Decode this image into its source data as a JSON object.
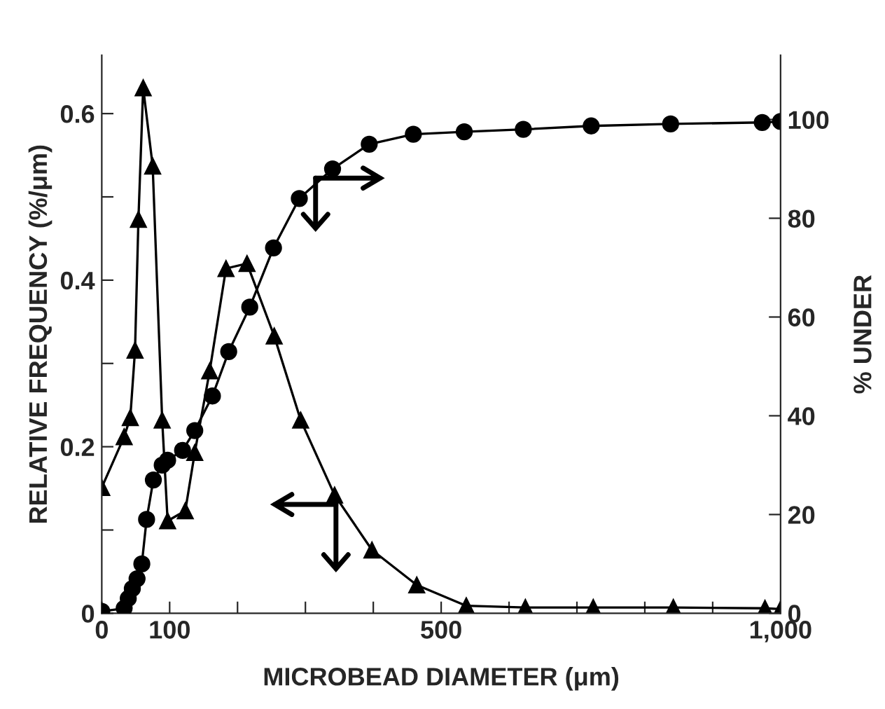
{
  "chart_data": {
    "type": "line",
    "xlabel": "MICROBEAD DIAMETER (μm)",
    "ylabel": "RELATIVE FREQUENCY (%/μm)",
    "y2label": "% UNDER",
    "xlim": [
      0,
      1000
    ],
    "xticks": [
      0,
      100,
      {
        "value": 200,
        "label": null
      },
      {
        "value": 300,
        "label": null
      },
      {
        "value": 400,
        "label": null
      },
      500,
      {
        "value": 600,
        "label": null
      },
      {
        "value": 700,
        "label": null
      },
      {
        "value": 800,
        "label": null
      },
      {
        "value": 900,
        "label": null
      },
      {
        "value": 1000,
        "label": "1,000"
      }
    ],
    "ylim": [
      0,
      0.67
    ],
    "yticks": [
      0,
      {
        "value": 0.1,
        "label": null
      },
      0.2,
      {
        "value": 0.3,
        "label": null
      },
      0.4,
      {
        "value": 0.5,
        "label": null
      },
      0.6
    ],
    "y2lim": [
      0,
      113
    ],
    "y2ticks": [
      0,
      20,
      40,
      60,
      80,
      100
    ],
    "grid": false,
    "legend": false,
    "line_style": "solid",
    "series": [
      {
        "color": "#000000",
        "marker": "triangle",
        "x": [
          0,
          33,
          42,
          49,
          54,
          61,
          75,
          89,
          97,
          123,
          137,
          159,
          183,
          214,
          254,
          293,
          343,
          398,
          464,
          537,
          624,
          724,
          842,
          977,
          1000
        ],
        "values": [
          0.151,
          0.212,
          0.235,
          0.316,
          0.473,
          0.631,
          0.537,
          0.232,
          0.111,
          0.123,
          0.193,
          0.291,
          0.414,
          0.42,
          0.333,
          0.232,
          0.142,
          0.076,
          0.034,
          0.009,
          0.007,
          0.007,
          0.007,
          0.006,
          0.005
        ]
      },
      {
        "color": "#000000",
        "marker": "circle",
        "axis": "y2",
        "x": [
          0,
          33,
          39,
          45,
          52,
          59,
          66,
          76,
          89,
          97,
          119,
          137,
          163,
          187,
          218,
          253,
          291,
          340,
          394,
          459,
          534,
          621,
          721,
          838,
          973,
          1000
        ],
        "values": [
          0.4,
          1,
          3,
          5,
          7,
          10,
          19,
          27,
          30,
          31,
          33,
          37,
          44,
          53,
          62,
          74,
          84,
          90,
          95,
          97,
          97.5,
          98,
          98.7,
          99.1,
          99.4,
          99.6
        ]
      }
    ]
  }
}
